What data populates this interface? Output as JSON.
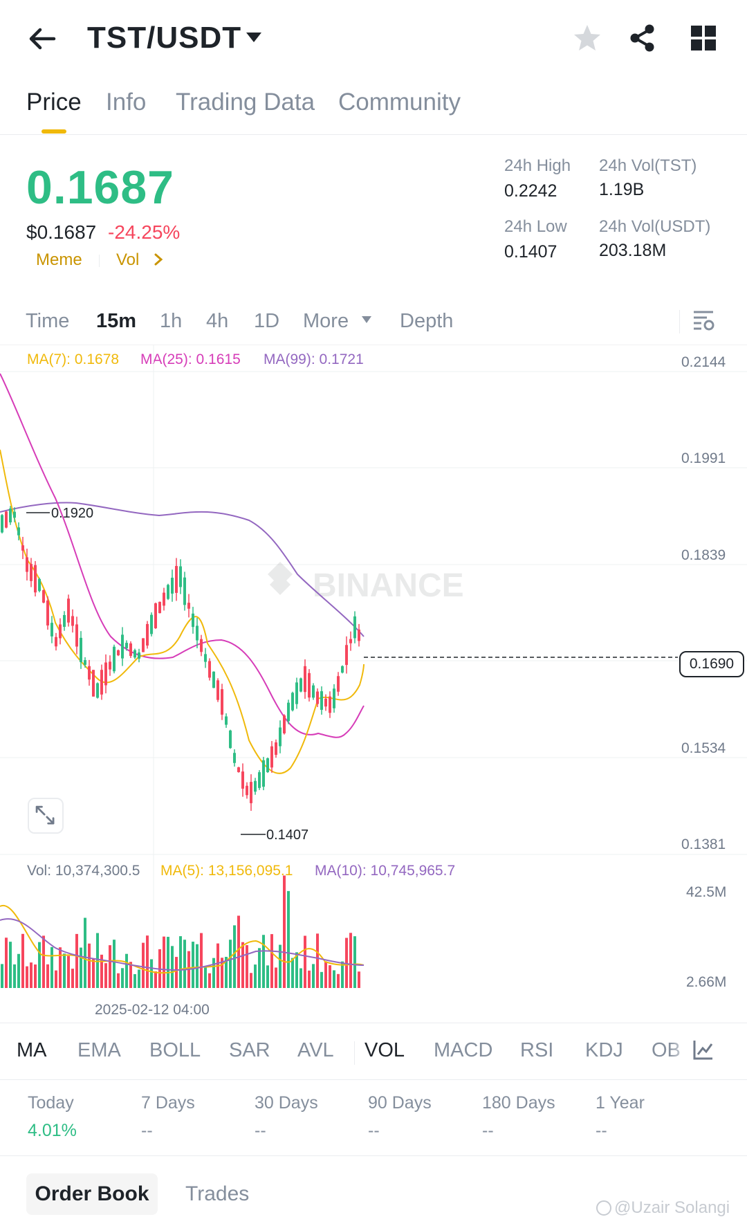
{
  "header": {
    "pair": "TST/USDT",
    "icons": [
      "back-arrow-icon",
      "caret-down-icon",
      "star-icon",
      "share-icon",
      "grid-icon"
    ]
  },
  "tabs": [
    "Price",
    "Info",
    "Trading Data",
    "Community"
  ],
  "ticker": {
    "last_price": "0.1687",
    "usd_price": "$0.1687",
    "change_pct": "-24.25%",
    "tag1": "Meme",
    "tag2": "Vol",
    "high_label": "24h High",
    "high_value": "0.2242",
    "low_label": "24h Low",
    "low_value": "0.1407",
    "vol_base_label": "24h Vol(TST)",
    "vol_base_value": "1.19B",
    "vol_quote_label": "24h Vol(USDT)",
    "vol_quote_value": "203.18M"
  },
  "timeframes": {
    "time": "Time",
    "m15": "15m",
    "h1": "1h",
    "h4": "4h",
    "d1": "1D",
    "more": "More",
    "depth": "Depth"
  },
  "ma_legend": {
    "ma7": "MA(7): 0.1678",
    "ma25": "MA(25): 0.1615",
    "ma99": "MA(99): 0.1721"
  },
  "price_axis": [
    "0.2144",
    "0.1991",
    "0.1839",
    "0.1534",
    "0.1381"
  ],
  "annotations": {
    "high_marker": "0.1920",
    "low_marker": "0.1407",
    "current_price": "0.1690",
    "brand_watermark": "BINANCE"
  },
  "vol_legend": {
    "vol": "Vol: 10,374,300.5",
    "ma5": "MA(5): 13,156,095.1",
    "ma10": "MA(10): 10,745,965.7"
  },
  "vol_axis": [
    "42.5M",
    "2.66M"
  ],
  "date_label": "2025-02-12 04:00",
  "indicators": [
    "MA",
    "EMA",
    "BOLL",
    "SAR",
    "AVL",
    "VOL",
    "MACD",
    "RSI",
    "KDJ",
    "OB"
  ],
  "performance": [
    {
      "label": "Today",
      "value": "4.01%"
    },
    {
      "label": "7 Days",
      "value": "--"
    },
    {
      "label": "30 Days",
      "value": "--"
    },
    {
      "label": "90 Days",
      "value": "--"
    },
    {
      "label": "180 Days",
      "value": "--"
    },
    {
      "label": "1 Year",
      "value": "--"
    }
  ],
  "bottom_tabs": {
    "order_book": "Order Book",
    "trades": "Trades"
  },
  "watermark": "@Uzair Solangi",
  "colors": {
    "up": "#2ebd85",
    "down": "#f6465d",
    "ma7": "#f0b90b",
    "ma25": "#d63cb8",
    "ma99": "#9367c0",
    "accent": "#f0b90b"
  },
  "chart_data": {
    "type": "candlestick",
    "price_axis_ticks": [
      0.2144,
      0.1991,
      0.1839,
      0.1534,
      0.1381
    ],
    "ma7_approx": [
      0.203,
      0.196,
      0.188,
      0.178,
      0.168,
      0.165,
      0.17,
      0.173,
      0.169,
      0.158,
      0.151,
      0.152,
      0.162,
      0.165,
      0.163,
      0.166,
      0.169
    ],
    "ma25_approx": [
      0.212,
      0.202,
      0.186,
      0.177,
      0.17,
      0.168,
      0.169,
      0.171,
      0.17,
      0.164,
      0.159,
      0.157,
      0.158,
      0.16,
      0.16,
      0.161,
      0.162
    ],
    "ma99_approx": [
      0.188,
      0.189,
      0.189,
      0.188,
      0.188,
      0.187,
      0.188,
      0.187,
      0.185,
      0.18,
      0.176,
      0.172,
      0.172
    ],
    "high": 0.192,
    "low": 0.1407,
    "last": 0.169
  }
}
